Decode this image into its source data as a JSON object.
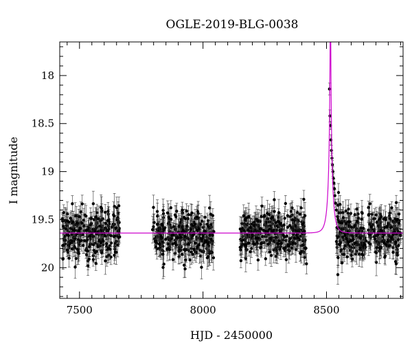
{
  "chart_data": {
    "type": "scatter",
    "title": "OGLE-2019-BLG-0038",
    "xlabel": "HJD - 2450000",
    "ylabel": "I magnitude",
    "xlim": [
      7420,
      8810
    ],
    "ylim": [
      20.32,
      17.65
    ],
    "y_inverted": true,
    "grid": false,
    "x_ticks": [
      7500,
      8000,
      8500
    ],
    "y_ticks": [
      18,
      18.5,
      19,
      19.5,
      20
    ],
    "colors": {
      "points": "#000000",
      "errorbars": "#333333",
      "model": "#cc00cc",
      "frame": "#000000"
    },
    "series": [
      {
        "kind": "observations",
        "seasons": [
          [
            7430,
            7665
          ],
          [
            7795,
            8045
          ],
          [
            8150,
            8420
          ],
          [
            8540,
            8800
          ]
        ],
        "baseline_mag": 19.65,
        "typical_scatter_mag": 0.13,
        "typical_error_mag": 0.1,
        "event_points": [
          {
            "x": 8512,
            "y": 18.14
          },
          {
            "x": 8514,
            "y": 18.42
          },
          {
            "x": 8516,
            "y": 18.52
          },
          {
            "x": 8518,
            "y": 18.67
          },
          {
            "x": 8520,
            "y": 18.78
          },
          {
            "x": 8522,
            "y": 18.86
          },
          {
            "x": 8524,
            "y": 18.93
          },
          {
            "x": 8526,
            "y": 19.0
          },
          {
            "x": 8528,
            "y": 19.07
          },
          {
            "x": 8530,
            "y": 19.12
          },
          {
            "x": 8532,
            "y": 19.18
          },
          {
            "x": 8534,
            "y": 19.25
          },
          {
            "x": 8537,
            "y": 19.33
          },
          {
            "x": 8540,
            "y": 19.4
          },
          {
            "x": 8545,
            "y": 19.47
          },
          {
            "x": 8550,
            "y": 19.52
          }
        ]
      },
      {
        "kind": "model",
        "baseline_mag": 19.64,
        "t0": 8516,
        "tE": 18,
        "u0": 0.06,
        "blending_fraction": 0.55
      }
    ]
  }
}
